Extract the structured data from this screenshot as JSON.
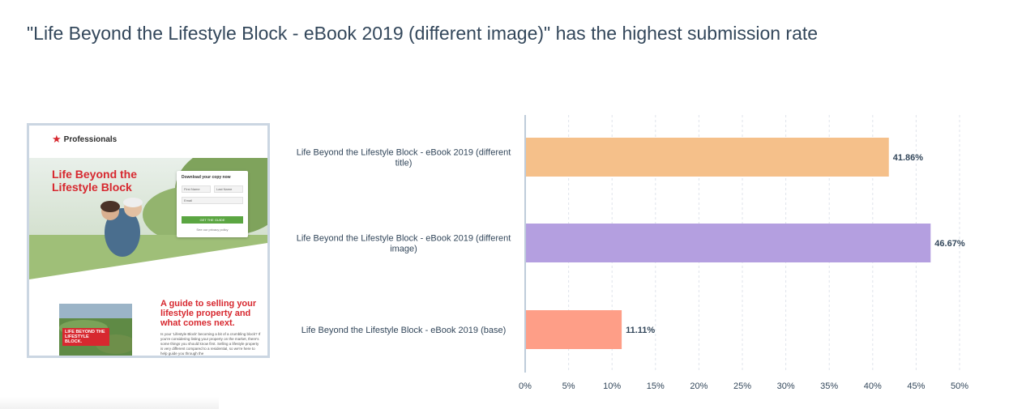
{
  "headline": "\"Life Beyond the Lifestyle Block - eBook 2019 (different image)\" has the highest submission rate",
  "thumbnail": {
    "logo": "Professionals",
    "hero_title": "Life Beyond the Lifestyle Block",
    "form_title": "Download your copy now",
    "form_first_name": "First Name",
    "form_last_name": "Last Name",
    "form_email": "Email",
    "form_button": "GET THE GUIDE",
    "form_note": "See our privacy policy",
    "guide_title": "A guide to selling your lifestyle property and what comes next.",
    "guide_text": "Is your 'Lifestyle Block' becoming a bit of a crumbling block? If you're considering listing your property on the market, there's some things you should know first. Selling a lifestyle property is very different compared to a residential, so we're here to help guide you through the",
    "book_label": "LIFE BEYOND THE LIFESTYLE BLOCK."
  },
  "chart_data": {
    "type": "bar",
    "orientation": "horizontal",
    "categories": [
      "Life Beyond the Lifestyle Block - eBook 2019 (different title)",
      "Life Beyond the Lifestyle Block - eBook 2019 (different image)",
      "Life Beyond the Lifestyle Block - eBook 2019 (base)"
    ],
    "category_lines": [
      [
        "Life Beyond the Lifestyle Block - eBook 2019 (different",
        "title)"
      ],
      [
        "Life Beyond the Lifestyle Block - eBook 2019 (different",
        "image)"
      ],
      [
        "Life Beyond the Lifestyle Block - eBook 2019 (base)"
      ]
    ],
    "values": [
      41.86,
      46.67,
      11.11
    ],
    "value_labels": [
      "41.86%",
      "46.67%",
      "11.11%"
    ],
    "colors": [
      "#f5c08a",
      "#b49fe0",
      "#fe9e87"
    ],
    "x_ticks": [
      "0%",
      "5%",
      "10%",
      "15%",
      "20%",
      "25%",
      "30%",
      "35%",
      "40%",
      "45%",
      "50%"
    ],
    "xlim": [
      0,
      50
    ],
    "grid": true
  }
}
